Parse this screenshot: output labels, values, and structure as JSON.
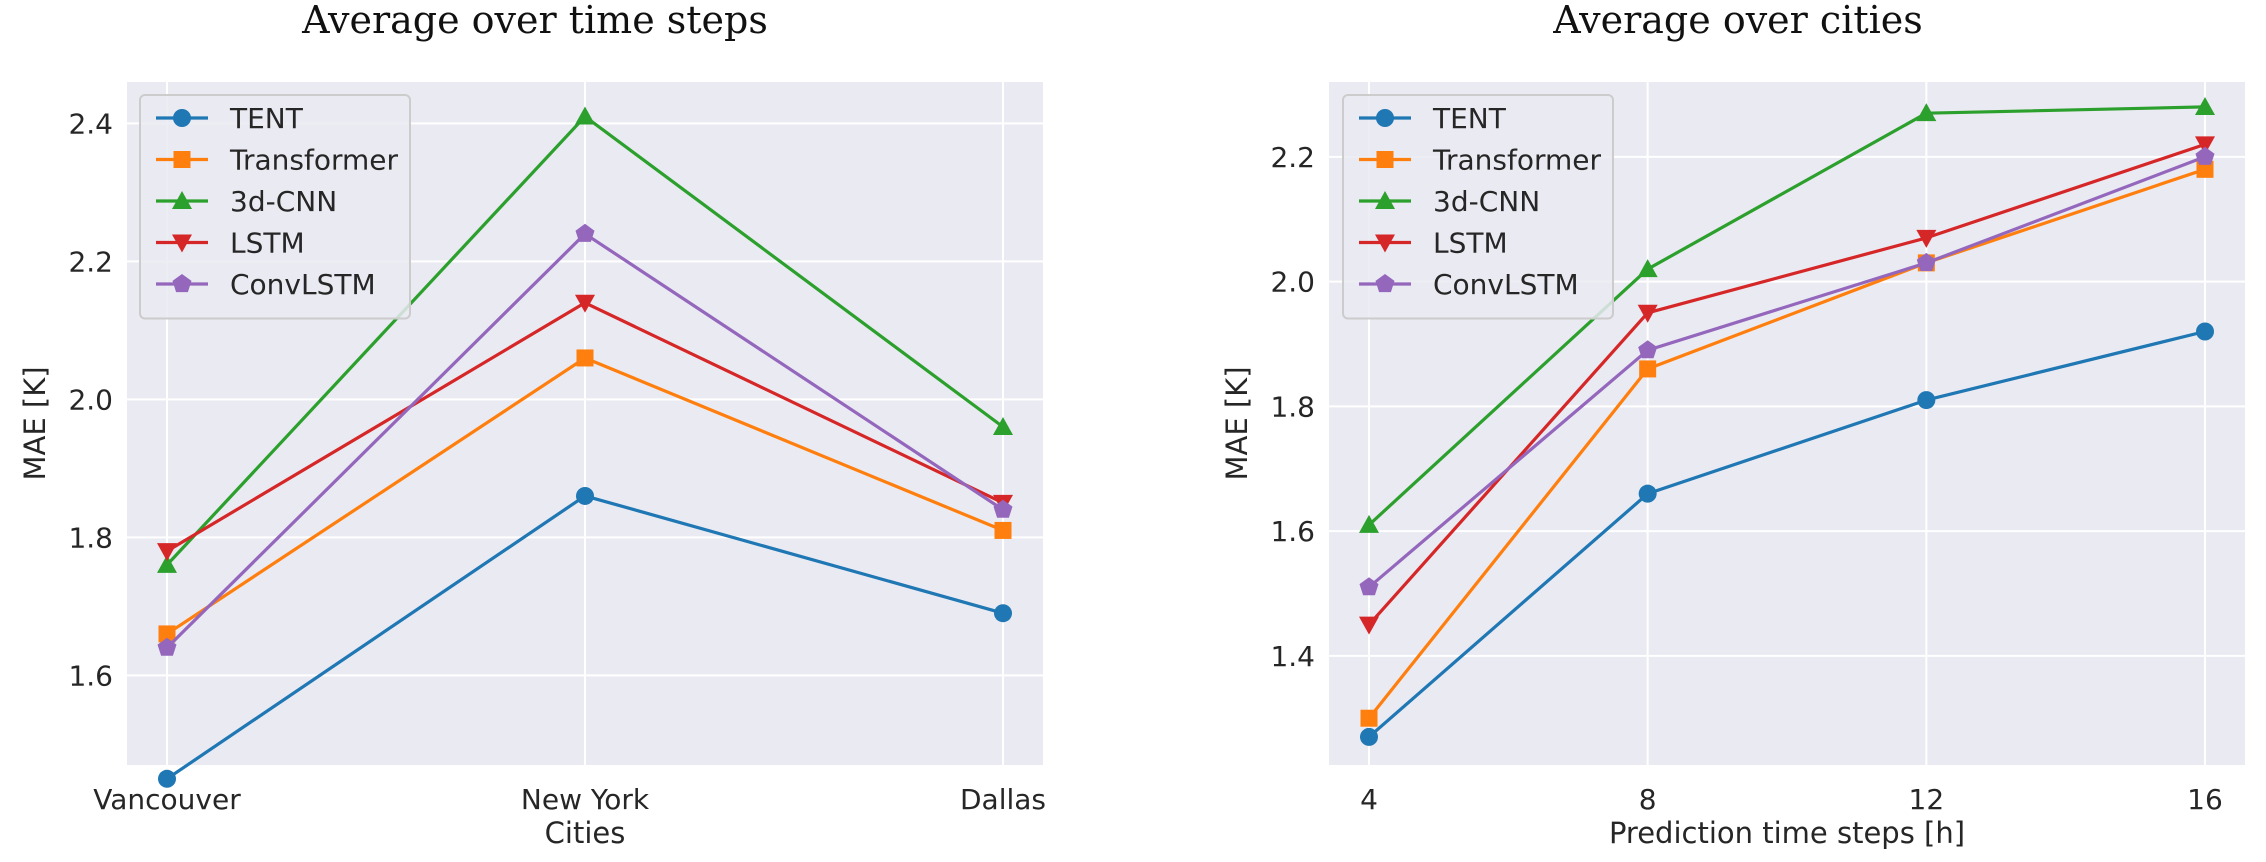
{
  "chart_data": [
    {
      "type": "line",
      "title": "Average over time steps",
      "xlabel": "Cities",
      "ylabel": "MAE [K]",
      "categories": [
        "Vancouver",
        "New York",
        "Dallas"
      ],
      "ylim": [
        1.47,
        2.46
      ],
      "yticks": [
        "1.6",
        "1.8",
        "2.0",
        "2.2",
        "2.4"
      ],
      "grid": true,
      "legend_position": "top-left",
      "series": [
        {
          "name": "TENT",
          "color": "#1f77b4",
          "marker": "circle",
          "values": [
            1.45,
            1.86,
            1.69
          ]
        },
        {
          "name": "Transformer",
          "color": "#ff7f0e",
          "marker": "square",
          "values": [
            1.66,
            2.06,
            1.81
          ]
        },
        {
          "name": "3d-CNN",
          "color": "#2ca02c",
          "marker": "triangle-up",
          "values": [
            1.76,
            2.41,
            1.96
          ]
        },
        {
          "name": "LSTM",
          "color": "#d62728",
          "marker": "triangle-down",
          "values": [
            1.78,
            2.14,
            1.85
          ]
        },
        {
          "name": "ConvLSTM",
          "color": "#9467bd",
          "marker": "pentagon",
          "values": [
            1.64,
            2.24,
            1.84
          ]
        }
      ]
    },
    {
      "type": "line",
      "title": "Average over cities",
      "xlabel": "Prediction time steps [h]",
      "ylabel": "MAE [K]",
      "x": [
        4,
        8,
        12,
        16
      ],
      "xticks": [
        "4",
        "8",
        "12",
        "16"
      ],
      "ylim": [
        1.225,
        2.32
      ],
      "yticks": [
        "1.4",
        "1.6",
        "1.8",
        "2.0",
        "2.2"
      ],
      "grid": true,
      "legend_position": "top-left",
      "series": [
        {
          "name": "TENT",
          "color": "#1f77b4",
          "marker": "circle",
          "values": [
            1.27,
            1.66,
            1.81,
            1.92
          ]
        },
        {
          "name": "Transformer",
          "color": "#ff7f0e",
          "marker": "square",
          "values": [
            1.3,
            1.86,
            2.03,
            2.18
          ]
        },
        {
          "name": "3d-CNN",
          "color": "#2ca02c",
          "marker": "triangle-up",
          "values": [
            1.61,
            2.02,
            2.27,
            2.28
          ]
        },
        {
          "name": "LSTM",
          "color": "#d62728",
          "marker": "triangle-down",
          "values": [
            1.45,
            1.95,
            2.07,
            2.22
          ]
        },
        {
          "name": "ConvLSTM",
          "color": "#9467bd",
          "marker": "pentagon",
          "values": [
            1.51,
            1.89,
            2.03,
            2.2
          ]
        }
      ]
    }
  ]
}
